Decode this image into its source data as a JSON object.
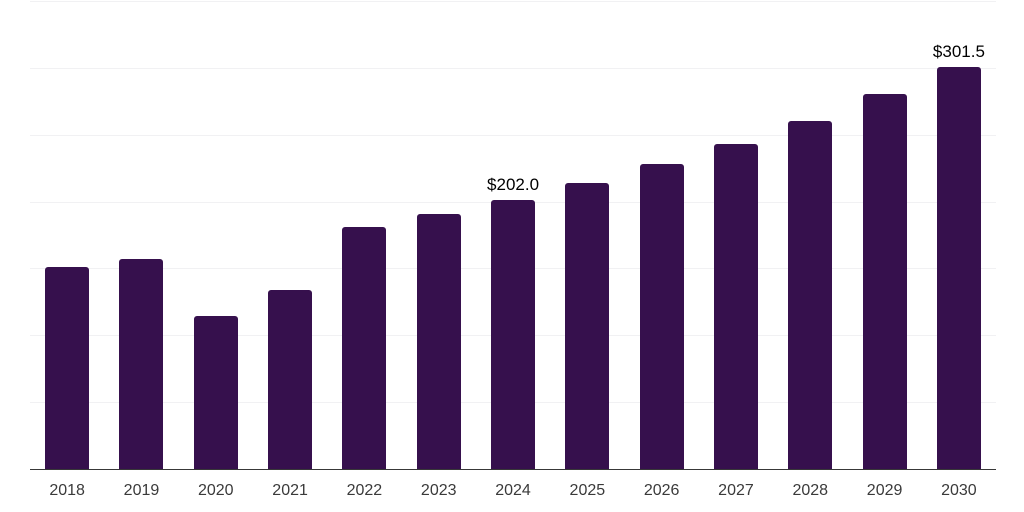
{
  "chart_data": {
    "type": "bar",
    "title": "",
    "xlabel": "",
    "ylabel": "",
    "categories": [
      "2018",
      "2019",
      "2020",
      "2021",
      "2022",
      "2023",
      "2024",
      "2025",
      "2026",
      "2027",
      "2028",
      "2029",
      "2030"
    ],
    "values": [
      152,
      158,
      115,
      135,
      181.5,
      191.5,
      202.0,
      214.5,
      229,
      244,
      261,
      281,
      301.5
    ],
    "bar_labels": [
      "",
      "",
      "",
      "",
      "",
      "",
      "$202.0",
      "",
      "",
      "",
      "",
      "",
      "$301.5"
    ],
    "ylim": [
      0,
      350
    ],
    "grid": true,
    "gridline_step": 50,
    "legend_position": "none",
    "colors": {
      "bar": "#36104d",
      "value_label": "#000000",
      "tick_label": "#3a3a3a",
      "axis_line": "#383838",
      "gridline": "#f1f1f3",
      "background": "#ffffff"
    }
  }
}
